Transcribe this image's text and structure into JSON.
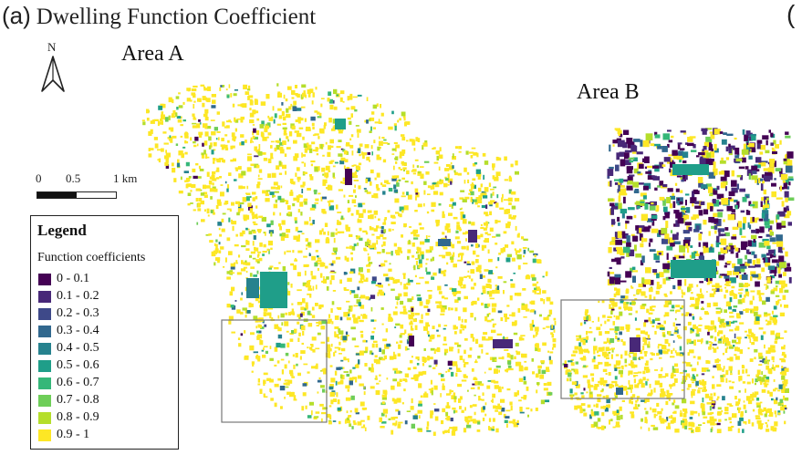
{
  "figure": {
    "panel_label": "(a)",
    "title": "Dwelling Function Coefficient",
    "right_edge_glyph": "("
  },
  "areas": {
    "a": "Area A",
    "b": "Area B"
  },
  "north_arrow": {
    "letter": "N",
    "icon": "north-arrow-icon"
  },
  "scale_bar": {
    "ticks": [
      "0",
      "0.5",
      "1 km"
    ]
  },
  "legend": {
    "title": "Legend",
    "subtitle": "Function coefficients",
    "items": [
      {
        "label": "0 - 0.1",
        "color": "#440154"
      },
      {
        "label": "0.1 - 0.2",
        "color": "#482878"
      },
      {
        "label": "0.2 - 0.3",
        "color": "#3e4989"
      },
      {
        "label": "0.3 - 0.4",
        "color": "#31688e"
      },
      {
        "label": "0.4 - 0.5",
        "color": "#26828e"
      },
      {
        "label": "0.5 - 0.6",
        "color": "#1f9e89"
      },
      {
        "label": "0.6 - 0.7",
        "color": "#35b779"
      },
      {
        "label": "0.7 - 0.8",
        "color": "#6ece58"
      },
      {
        "label": "0.8 - 0.9",
        "color": "#b5de2b"
      },
      {
        "label": "0.9 - 1",
        "color": "#fde725"
      }
    ]
  }
}
